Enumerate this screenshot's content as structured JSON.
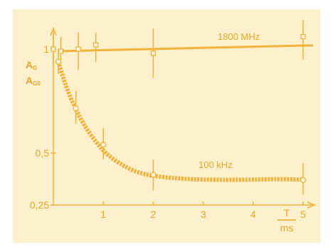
{
  "chart_data": {
    "type": "line",
    "xlim": [
      0,
      5
    ],
    "ylim": [
      0.25,
      1.05
    ],
    "x_ticks": [
      "1",
      "2",
      "3",
      "4",
      "5"
    ],
    "y_ticks": [
      {
        "value": 1,
        "label": "1"
      },
      {
        "value": 0.5,
        "label": "0,5"
      },
      {
        "value": 0.25,
        "label": "0,25"
      }
    ],
    "ylabel_top": "A",
    "ylabel_top_sub": "G",
    "ylabel_bottom": "A",
    "ylabel_bottom_sub": "G0",
    "xlabel_num": "T",
    "xlabel_den": "ms",
    "colors": {
      "curve": "#f2b33d",
      "axis": "#f2b33d",
      "text": "#e8a728",
      "point_fill": "#fff6dc"
    },
    "series": [
      {
        "name": "1800 MHz",
        "style": "solid",
        "curve_x": [
          0.1,
          5.2
        ],
        "curve_y": [
          0.99,
          1.018
        ],
        "points": [
          {
            "x": 0,
            "y": 1.0,
            "err_lo": 0.93,
            "err_hi": 1.08
          },
          {
            "x": 0.15,
            "y": 0.99,
            "err_lo": 0.93,
            "err_hi": 1.06
          },
          {
            "x": 0.5,
            "y": 1.0,
            "err_lo": 0.9,
            "err_hi": 1.08
          },
          {
            "x": 0.85,
            "y": 1.02,
            "err_lo": 0.94,
            "err_hi": 1.08
          },
          {
            "x": 2.0,
            "y": 0.98,
            "err_lo": 0.86,
            "err_hi": 1.1
          },
          {
            "x": 5.0,
            "y": 1.06,
            "err_lo": 0.95,
            "err_hi": 1.14
          }
        ]
      },
      {
        "name": "100 kHz",
        "style": "dashed",
        "curve_x": [
          0.1,
          0.2,
          0.3,
          0.45,
          0.6,
          0.8,
          1.0,
          1.2,
          1.4,
          1.6,
          1.8,
          2.0,
          2.3,
          2.6,
          3.0,
          3.5,
          4.0,
          4.5,
          5.0
        ],
        "curve_y": [
          0.94,
          0.86,
          0.79,
          0.71,
          0.64,
          0.57,
          0.51,
          0.47,
          0.44,
          0.415,
          0.4,
          0.39,
          0.382,
          0.376,
          0.372,
          0.371,
          0.372,
          0.375,
          0.372
        ],
        "points": [
          {
            "x": 0.1,
            "y": 0.94,
            "err_lo": 0.88,
            "err_hi": 1.0
          },
          {
            "x": 0.45,
            "y": 0.715,
            "err_lo": 0.64,
            "err_hi": 0.8
          },
          {
            "x": 1.0,
            "y": 0.54,
            "err_lo": 0.47,
            "err_hi": 0.62
          },
          {
            "x": 2.0,
            "y": 0.395,
            "err_lo": 0.32,
            "err_hi": 0.47
          },
          {
            "x": 5.0,
            "y": 0.37,
            "err_lo": 0.3,
            "err_hi": 0.45
          }
        ]
      }
    ]
  }
}
